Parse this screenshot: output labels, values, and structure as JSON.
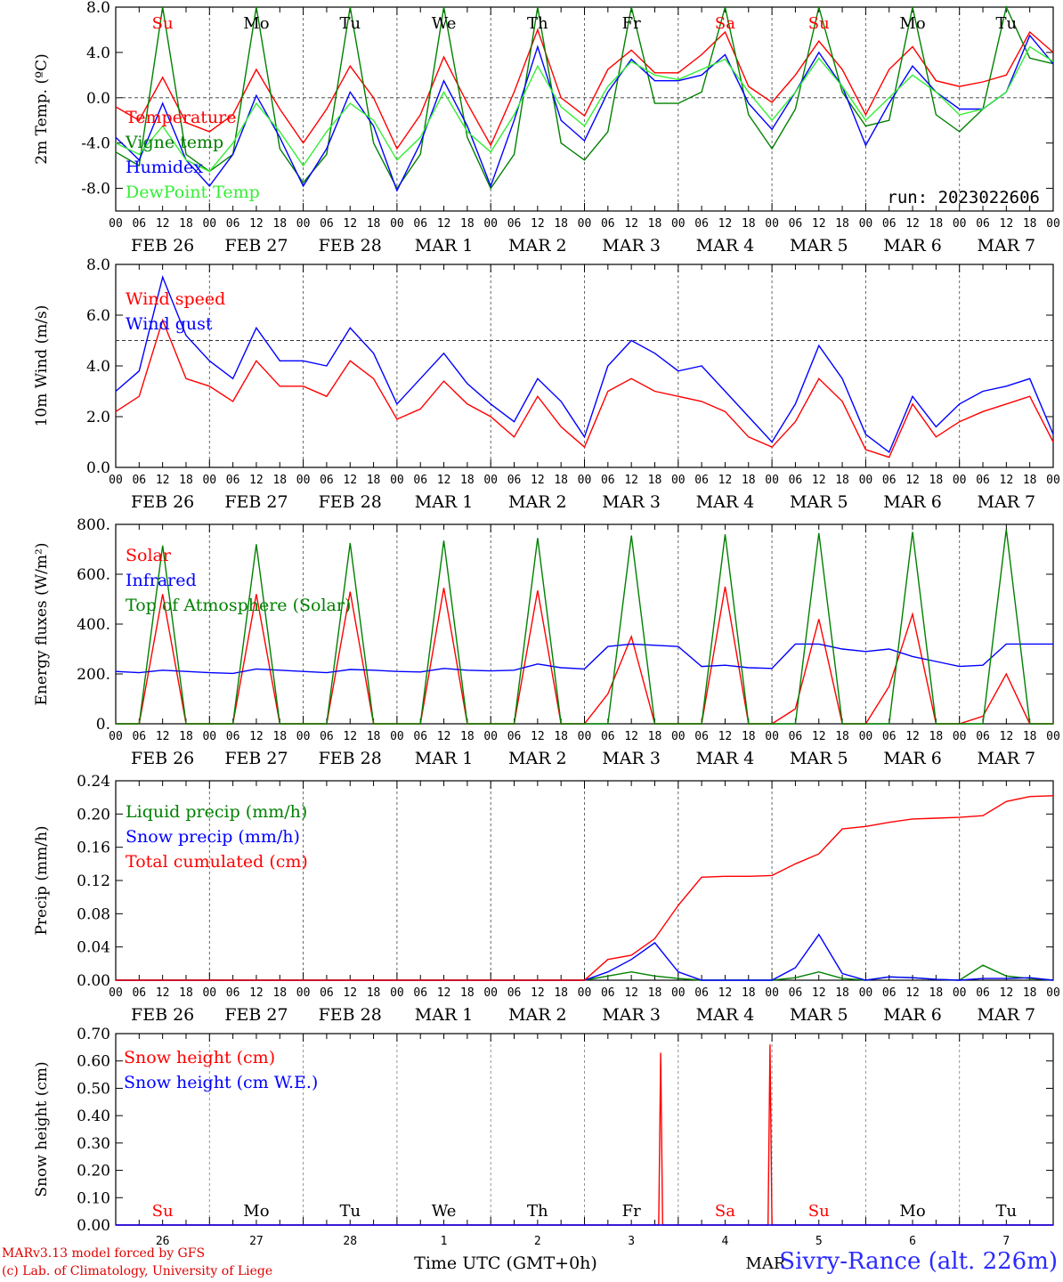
{
  "chart_data": [
    {
      "type": "line",
      "ylabel": "2m Temp. (ºC)",
      "ylim": [
        -10,
        8
      ],
      "yticks": [
        "8.0",
        "4.0",
        "0.0",
        "-4.0",
        "-8.0"
      ],
      "ytick_values": [
        8,
        4,
        0,
        -4,
        -8
      ],
      "dashed_ref": 0,
      "run_label": "run: 2023022606",
      "weekdays": [
        {
          "label": "Su",
          "color": "#ff0000"
        },
        {
          "label": "Mo",
          "color": "#000000"
        },
        {
          "label": "Tu",
          "color": "#000000"
        },
        {
          "label": "We",
          "color": "#000000"
        },
        {
          "label": "Th",
          "color": "#000000"
        },
        {
          "label": "Fr",
          "color": "#000000"
        },
        {
          "label": "Sa",
          "color": "#ff0000"
        },
        {
          "label": "Su",
          "color": "#ff0000"
        },
        {
          "label": "Mo",
          "color": "#000000"
        },
        {
          "label": "Tu",
          "color": "#000000"
        }
      ],
      "x": [
        0,
        6,
        12,
        18,
        24,
        30,
        36,
        42,
        48,
        54,
        60,
        66,
        72,
        78,
        84,
        90,
        96,
        102,
        108,
        114,
        120,
        126,
        132,
        138,
        144,
        150,
        156,
        162,
        168,
        174,
        180,
        186,
        192,
        198,
        204,
        210,
        216,
        222,
        228,
        234,
        240
      ],
      "series": [
        {
          "name": "Temperature",
          "color": "#ff0000",
          "values": [
            -0.8,
            -2.0,
            1.8,
            -2.2,
            -3.0,
            -1.5,
            2.5,
            -1.0,
            -4.0,
            -1.0,
            2.8,
            0.0,
            -4.5,
            -1.5,
            3.6,
            -0.5,
            -4.2,
            0.5,
            6.0,
            0.0,
            -1.6,
            2.5,
            4.2,
            2.2,
            2.2,
            3.8,
            5.8,
            1.0,
            -0.4,
            2.0,
            5.0,
            2.5,
            -1.5,
            2.5,
            4.5,
            1.5,
            1.0,
            1.4,
            2.0,
            5.8,
            4.0
          ]
        },
        {
          "name": "Vigne temp",
          "color": "#008000",
          "values": [
            -4.8,
            -6.0,
            8.0,
            -5.0,
            -6.5,
            -5.0,
            8.0,
            -4.5,
            -7.5,
            -5.0,
            8.0,
            -4.0,
            -8.0,
            -5.0,
            8.0,
            -3.5,
            -8.0,
            -5.0,
            8.0,
            -4.0,
            -5.5,
            -3.0,
            8.0,
            -0.5,
            -0.5,
            0.5,
            8.0,
            -1.5,
            -4.5,
            -1.0,
            8.0,
            0.5,
            -2.5,
            -2.0,
            8.0,
            -1.5,
            -3.0,
            -1.0,
            8.0,
            3.5,
            3.0
          ]
        },
        {
          "name": "Humidex",
          "color": "#0000ff",
          "values": [
            -3.5,
            -5.5,
            -0.5,
            -5.5,
            -7.8,
            -5.0,
            0.2,
            -3.5,
            -7.8,
            -4.5,
            0.5,
            -2.5,
            -8.2,
            -4.0,
            1.5,
            -2.5,
            -7.8,
            -2.0,
            4.5,
            -2.0,
            -3.8,
            0.5,
            3.4,
            1.5,
            1.5,
            2.0,
            3.8,
            -0.5,
            -2.8,
            0.5,
            4.0,
            1.0,
            -4.2,
            -0.5,
            2.8,
            0.5,
            -1.0,
            -1.0,
            0.5,
            5.5,
            3.0
          ]
        },
        {
          "name": "DewPoint Temp",
          "color": "#33ee33",
          "values": [
            -4.0,
            -5.0,
            -2.5,
            -5.5,
            -6.5,
            -4.0,
            -0.5,
            -3.0,
            -6.0,
            -3.0,
            -0.5,
            -2.0,
            -5.5,
            -3.5,
            0.5,
            -3.0,
            -4.8,
            -1.5,
            2.8,
            -0.8,
            -2.5,
            1.0,
            3.2,
            2.0,
            1.6,
            2.5,
            3.4,
            0.5,
            -2.0,
            0.5,
            3.5,
            1.0,
            -2.0,
            0.0,
            2.0,
            0.5,
            -1.5,
            -1.0,
            0.5,
            4.5,
            3.2
          ]
        }
      ]
    },
    {
      "type": "line",
      "ylabel": "10m Wind (m/s)",
      "ylim": [
        0,
        8
      ],
      "yticks": [
        "8.0",
        "6.0",
        "4.0",
        "2.0",
        "0.0"
      ],
      "ytick_values": [
        8,
        6,
        4,
        2,
        0
      ],
      "dashed_ref": 5,
      "x": [
        0,
        6,
        12,
        18,
        24,
        30,
        36,
        42,
        48,
        54,
        60,
        66,
        72,
        78,
        84,
        90,
        96,
        102,
        108,
        114,
        120,
        126,
        132,
        138,
        144,
        150,
        156,
        162,
        168,
        174,
        180,
        186,
        192,
        198,
        204,
        210,
        216,
        222,
        228,
        234,
        240
      ],
      "series": [
        {
          "name": "Wind speed",
          "color": "#ff0000",
          "values": [
            2.2,
            2.8,
            5.8,
            3.5,
            3.2,
            2.6,
            4.2,
            3.2,
            3.2,
            2.8,
            4.2,
            3.5,
            1.9,
            2.3,
            3.4,
            2.5,
            2.0,
            1.2,
            2.8,
            1.6,
            0.8,
            3.0,
            3.5,
            3.0,
            2.8,
            2.6,
            2.2,
            1.2,
            0.8,
            1.8,
            3.5,
            2.6,
            0.7,
            0.4,
            2.5,
            1.2,
            1.8,
            2.2,
            2.5,
            2.8,
            1.0
          ]
        },
        {
          "name": "Wind gust",
          "color": "#0000ff",
          "values": [
            3.0,
            3.8,
            7.5,
            5.2,
            4.2,
            3.5,
            5.5,
            4.2,
            4.2,
            4.0,
            5.5,
            4.5,
            2.5,
            3.5,
            4.5,
            3.3,
            2.5,
            1.8,
            3.5,
            2.6,
            1.2,
            4.0,
            5.0,
            4.5,
            3.8,
            4.0,
            3.0,
            2.0,
            1.0,
            2.5,
            4.8,
            3.5,
            1.3,
            0.6,
            2.8,
            1.6,
            2.5,
            3.0,
            3.2,
            3.5,
            1.3
          ]
        }
      ]
    },
    {
      "type": "line",
      "ylabel": "Energy fluxes (W/m²)",
      "ylim": [
        0,
        800
      ],
      "yticks": [
        "800.",
        "600.",
        "400.",
        "200.",
        "0."
      ],
      "ytick_values": [
        800,
        600,
        400,
        200,
        0
      ],
      "x": [
        0,
        6,
        12,
        18,
        24,
        30,
        36,
        42,
        48,
        54,
        60,
        66,
        72,
        78,
        84,
        90,
        96,
        102,
        108,
        114,
        120,
        126,
        132,
        138,
        144,
        150,
        156,
        162,
        168,
        174,
        180,
        186,
        192,
        198,
        204,
        210,
        216,
        222,
        228,
        234,
        240
      ],
      "series": [
        {
          "name": "Solar",
          "color": "#ff0000",
          "values": [
            0,
            0,
            520,
            0,
            0,
            0,
            520,
            0,
            0,
            0,
            530,
            0,
            0,
            0,
            545,
            0,
            0,
            0,
            535,
            0,
            0,
            120,
            350,
            0,
            0,
            0,
            550,
            0,
            0,
            60,
            420,
            0,
            0,
            150,
            440,
            0,
            0,
            30,
            200,
            0,
            0
          ]
        },
        {
          "name": "Infrared",
          "color": "#0000ff",
          "values": [
            210,
            205,
            215,
            210,
            205,
            202,
            220,
            215,
            210,
            205,
            218,
            215,
            210,
            208,
            222,
            215,
            212,
            215,
            240,
            225,
            220,
            310,
            320,
            315,
            310,
            230,
            235,
            225,
            222,
            320,
            320,
            300,
            290,
            300,
            270,
            250,
            230,
            235,
            320,
            320,
            320
          ]
        },
        {
          "name": "Top of Atmosphere (Solar)",
          "color": "#008000",
          "values": [
            0,
            0,
            715,
            0,
            0,
            0,
            720,
            0,
            0,
            0,
            725,
            0,
            0,
            0,
            735,
            0,
            0,
            0,
            745,
            0,
            0,
            0,
            755,
            0,
            0,
            0,
            760,
            0,
            0,
            0,
            765,
            0,
            0,
            0,
            770,
            0,
            0,
            0,
            780,
            0,
            0
          ]
        }
      ]
    },
    {
      "type": "line",
      "ylabel": "Precip (mm/h)",
      "ylim": [
        0,
        0.24
      ],
      "yticks": [
        "0.24",
        "0.20",
        "0.16",
        "0.12",
        "0.08",
        "0.04",
        "0.00"
      ],
      "ytick_values": [
        0.24,
        0.2,
        0.16,
        0.12,
        0.08,
        0.04,
        0
      ],
      "x": [
        0,
        6,
        12,
        18,
        24,
        30,
        36,
        42,
        48,
        54,
        60,
        66,
        72,
        78,
        84,
        90,
        96,
        102,
        108,
        114,
        120,
        126,
        132,
        138,
        144,
        150,
        156,
        162,
        168,
        174,
        180,
        186,
        192,
        198,
        204,
        210,
        216,
        222,
        228,
        234,
        240
      ],
      "series": [
        {
          "name": "Liquid precip (mm/h)",
          "color": "#008000",
          "values": [
            0,
            0,
            0,
            0,
            0,
            0,
            0,
            0,
            0,
            0,
            0,
            0,
            0,
            0,
            0,
            0,
            0,
            0,
            0,
            0,
            0,
            0.005,
            0.01,
            0.005,
            0.002,
            0,
            0,
            0,
            0,
            0.003,
            0.01,
            0.002,
            0,
            0.004,
            0.003,
            0.001,
            0,
            0.018,
            0.005,
            0.002,
            0
          ]
        },
        {
          "name": "Snow precip (mm/h)",
          "color": "#0000ff",
          "values": [
            0,
            0,
            0,
            0,
            0,
            0,
            0,
            0,
            0,
            0,
            0,
            0,
            0,
            0,
            0,
            0,
            0,
            0,
            0,
            0,
            0,
            0.01,
            0.025,
            0.045,
            0.01,
            0,
            0,
            0,
            0,
            0.015,
            0.055,
            0.008,
            0,
            0.004,
            0.003,
            0.001,
            0,
            0.002,
            0.002,
            0.003,
            0
          ]
        },
        {
          "name": "Total cumulated (cm)",
          "color": "#ff0000",
          "values": [
            0,
            0,
            0,
            0,
            0,
            0,
            0,
            0,
            0,
            0,
            0,
            0,
            0,
            0,
            0,
            0,
            0,
            0,
            0,
            0,
            0,
            0.025,
            0.03,
            0.05,
            0.09,
            0.124,
            0.125,
            0.125,
            0.126,
            0.14,
            0.152,
            0.182,
            0.185,
            0.19,
            0.194,
            0.195,
            0.196,
            0.198,
            0.215,
            0.221,
            0.222
          ]
        }
      ]
    },
    {
      "type": "line",
      "ylabel": "Snow height (cm)",
      "ylim": [
        0,
        0.7
      ],
      "yticks": [
        "0.70",
        "0.60",
        "0.50",
        "0.40",
        "0.30",
        "0.20",
        "0.10",
        "0.00"
      ],
      "ytick_values": [
        0.7,
        0.6,
        0.5,
        0.4,
        0.3,
        0.2,
        0.1,
        0
      ],
      "x": [
        0,
        139,
        139.5,
        140,
        167,
        167.5,
        168,
        240
      ],
      "series": [
        {
          "name": "Snow height (cm)",
          "color": "#ff0000",
          "values": [
            0,
            0,
            0.63,
            0,
            0,
            0.66,
            0,
            0
          ]
        },
        {
          "name": "Snow height (cm W.E.)",
          "color": "#0000ff",
          "values": [
            0,
            0,
            0,
            0,
            0,
            0,
            0,
            0
          ]
        }
      ],
      "weekdays": [
        {
          "label": "Su",
          "color": "#ff0000"
        },
        {
          "label": "Mo",
          "color": "#000000"
        },
        {
          "label": "Tu",
          "color": "#000000"
        },
        {
          "label": "We",
          "color": "#000000"
        },
        {
          "label": "Th",
          "color": "#000000"
        },
        {
          "label": "Fr",
          "color": "#000000"
        },
        {
          "label": "Sa",
          "color": "#ff0000"
        },
        {
          "label": "Su",
          "color": "#ff0000"
        },
        {
          "label": "Mo",
          "color": "#000000"
        },
        {
          "label": "Tu",
          "color": "#000000"
        }
      ],
      "day_numbers": [
        "26",
        "27",
        "28",
        "1",
        "2",
        "3",
        "4",
        "5",
        "6",
        "7"
      ],
      "month_label": "MAR",
      "xlabel": "Time UTC (GMT+0h)"
    }
  ],
  "hour_ticks": [
    "00",
    "06",
    "12",
    "18"
  ],
  "date_labels": [
    "FEB 26",
    "FEB 27",
    "FEB 28",
    "MAR  1",
    "MAR  2",
    "MAR  3",
    "MAR  4",
    "MAR  5",
    "MAR  6",
    "MAR  7"
  ],
  "footer": {
    "model": "MARv3.13 model forced by GFS",
    "lab": "(c) Lab. of Climatology, University of Liege",
    "station": "Sivry-Rance (alt. 226m)"
  }
}
